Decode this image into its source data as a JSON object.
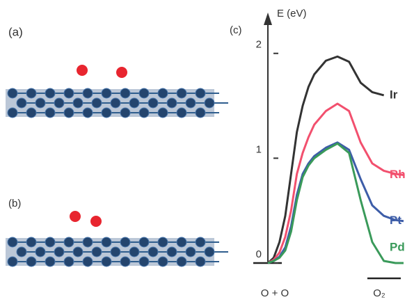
{
  "panels": [
    {
      "label": "(a)"
    },
    {
      "label": "(b)"
    }
  ],
  "chart_data": {
    "type": "line",
    "label": "(c)",
    "ylabel": "E (eV)",
    "x": [
      0,
      0.05,
      0.1,
      0.15,
      0.2,
      0.25,
      0.3,
      0.35,
      0.4,
      0.5,
      0.6,
      0.7,
      0.8,
      0.9,
      1.0,
      1.1,
      1.17
    ],
    "series": [
      {
        "name": "Ir",
        "color": "#333333",
        "values": [
          0,
          0.05,
          0.2,
          0.45,
          0.85,
          1.25,
          1.5,
          1.68,
          1.8,
          1.93,
          1.97,
          1.92,
          1.72,
          1.63,
          1.6,
          null,
          null
        ]
      },
      {
        "name": "Rh",
        "color": "#f2506e",
        "values": [
          0,
          0.03,
          0.1,
          0.25,
          0.5,
          0.85,
          1.05,
          1.2,
          1.32,
          1.45,
          1.52,
          1.45,
          1.15,
          0.95,
          0.88,
          0.85,
          0.84
        ]
      },
      {
        "name": "Pt",
        "color": "#3d5da8",
        "values": [
          0,
          0.02,
          0.06,
          0.15,
          0.35,
          0.65,
          0.85,
          0.95,
          1.02,
          1.1,
          1.15,
          1.08,
          0.8,
          0.55,
          0.45,
          0.41,
          0.4
        ]
      },
      {
        "name": "Pd",
        "color": "#3a9a5a",
        "values": [
          0,
          0.02,
          0.05,
          0.12,
          0.3,
          0.6,
          0.82,
          0.93,
          1.0,
          1.08,
          1.14,
          1.05,
          0.6,
          0.2,
          0.02,
          0,
          0
        ]
      }
    ],
    "xlim": [
      0,
      1.2
    ],
    "ylim": [
      0,
      2.35
    ],
    "yticks": [
      0,
      1,
      2
    ],
    "xticks": [
      {
        "value": 0.06,
        "label": "O + O"
      },
      {
        "value": 0.96,
        "label": "O₂"
      }
    ]
  }
}
